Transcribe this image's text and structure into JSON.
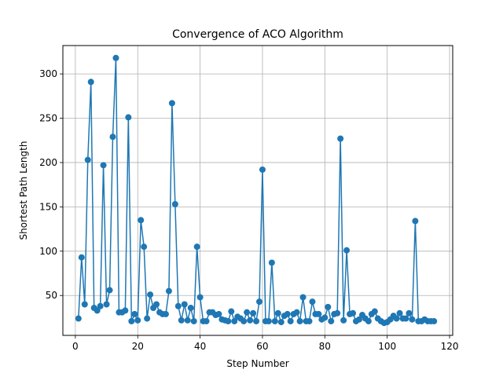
{
  "chart_data": {
    "type": "line",
    "title": "Convergence of ACO Algorithm",
    "xlabel": "Step Number",
    "ylabel": "Shortest Path Length",
    "xlim": [
      -4,
      121
    ],
    "ylim": [
      5,
      332
    ],
    "xticks": [
      0,
      20,
      40,
      60,
      80,
      100,
      120
    ],
    "yticks": [
      50,
      100,
      150,
      200,
      250,
      300
    ],
    "grid": true,
    "series": [
      {
        "name": "",
        "color": "#1f77b4",
        "marker": "circle",
        "x": [
          1,
          2,
          3,
          4,
          5,
          6,
          7,
          8,
          9,
          10,
          11,
          12,
          13,
          14,
          15,
          16,
          17,
          18,
          19,
          20,
          21,
          22,
          23,
          24,
          25,
          26,
          27,
          28,
          29,
          30,
          31,
          32,
          33,
          34,
          35,
          36,
          37,
          38,
          39,
          40,
          41,
          42,
          43,
          44,
          45,
          46,
          47,
          48,
          49,
          50,
          51,
          52,
          53,
          54,
          55,
          56,
          57,
          58,
          59,
          60,
          61,
          62,
          63,
          64,
          65,
          66,
          67,
          68,
          69,
          70,
          71,
          72,
          73,
          74,
          75,
          76,
          77,
          78,
          79,
          80,
          81,
          82,
          83,
          84,
          85,
          86,
          87,
          88,
          89,
          90,
          91,
          92,
          93,
          94,
          95,
          96,
          97,
          98,
          99,
          100,
          101,
          102,
          103,
          104,
          105,
          106,
          107,
          108,
          109,
          110,
          111,
          112,
          113,
          114,
          115
        ],
        "y": [
          24,
          93,
          40,
          203,
          291,
          36,
          33,
          38,
          197,
          40,
          56,
          229,
          318,
          31,
          31,
          33,
          251,
          21,
          29,
          22,
          135,
          105,
          24,
          51,
          36,
          40,
          31,
          29,
          29,
          55,
          267,
          153,
          38,
          22,
          40,
          22,
          36,
          21,
          105,
          48,
          21,
          21,
          31,
          31,
          28,
          29,
          23,
          22,
          21,
          32,
          21,
          26,
          24,
          21,
          31,
          22,
          30,
          21,
          43,
          192,
          21,
          21,
          87,
          21,
          30,
          20,
          27,
          29,
          21,
          29,
          31,
          21,
          48,
          21,
          21,
          43,
          29,
          29,
          23,
          25,
          37,
          21,
          29,
          30,
          227,
          22,
          101,
          29,
          30,
          21,
          23,
          28,
          24,
          21,
          29,
          32,
          24,
          21,
          19,
          20,
          23,
          27,
          24,
          30,
          24,
          24,
          30,
          23,
          134,
          21,
          21,
          23,
          21,
          21,
          21
        ]
      }
    ]
  }
}
